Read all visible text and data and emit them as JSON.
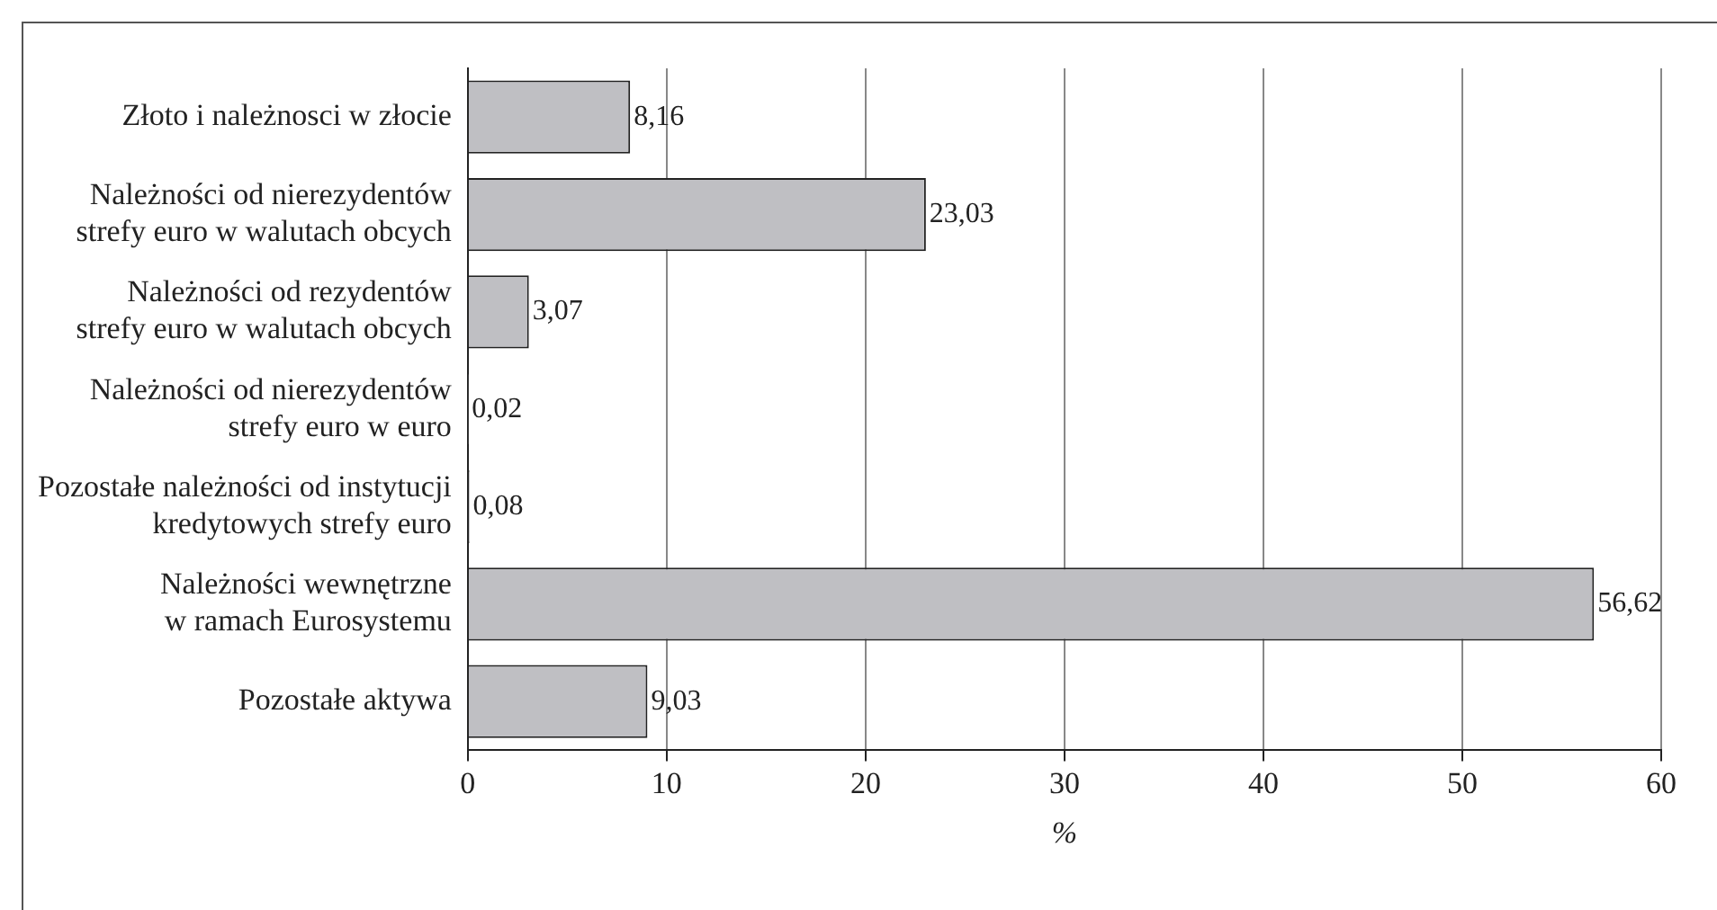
{
  "chart_data": {
    "type": "bar",
    "orientation": "horizontal",
    "categories": [
      "Złoto i należnosci w złocie",
      "Należności od nierezydentów\nstrefy euro w walutach obcych",
      "Należności od rezydentów\nstrefy euro w walutach obcych",
      "Należności od nierezydentów\nstrefy euro w euro",
      "Pozostałe należności od instytucji\nkredytowych strefy euro",
      "Należności wewnętrzne\nw ramach Eurosystemu",
      "Pozostałe aktywa"
    ],
    "values": [
      8.16,
      23.03,
      3.07,
      0.02,
      0.08,
      56.62,
      9.03
    ],
    "value_labels": [
      "8,16",
      "23,03",
      "3,07",
      "0,02",
      "0,08",
      "56,62",
      "9,03"
    ],
    "color": "#bfbfc3",
    "xlim": [
      0,
      60
    ],
    "xticks": [
      0,
      10,
      20,
      30,
      40,
      50,
      60
    ],
    "xlabel": "%",
    "grid": "x",
    "legend": false
  }
}
